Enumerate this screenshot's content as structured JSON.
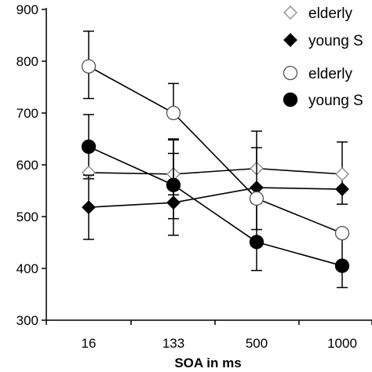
{
  "chart_data": {
    "type": "line",
    "title": "",
    "xlabel": "SOA in ms",
    "ylabel": "",
    "categories": [
      "16",
      "133",
      "500",
      "1000"
    ],
    "ylim": [
      300,
      900
    ],
    "yticks": [
      "300",
      "400",
      "500",
      "600",
      "700",
      "800",
      "900"
    ],
    "grid": false,
    "legend_position": "top-right",
    "series": [
      {
        "name": "elderly",
        "marker": "diamond-open",
        "values": [
          585,
          582,
          593,
          582
        ],
        "err_high": [
          45,
          68,
          40,
          62
        ],
        "err_low": [
          12,
          40,
          0,
          58
        ]
      },
      {
        "name": "young S",
        "marker": "diamond-filled",
        "values": [
          518,
          527,
          556,
          553
        ],
        "err_high": [
          62,
          95,
          0,
          0
        ],
        "err_low": [
          62,
          63,
          0,
          0
        ]
      },
      {
        "name": "elderly",
        "marker": "circle-open",
        "values": [
          790,
          700,
          535,
          468
        ],
        "err_high": [
          68,
          57,
          130,
          0
        ],
        "err_low": [
          62,
          0,
          60,
          0
        ]
      },
      {
        "name": "young S",
        "marker": "circle-filled",
        "values": [
          635,
          561,
          451,
          405
        ],
        "err_high": [
          62,
          87,
          75,
          55
        ],
        "err_low": [
          0,
          65,
          55,
          42
        ]
      }
    ]
  }
}
